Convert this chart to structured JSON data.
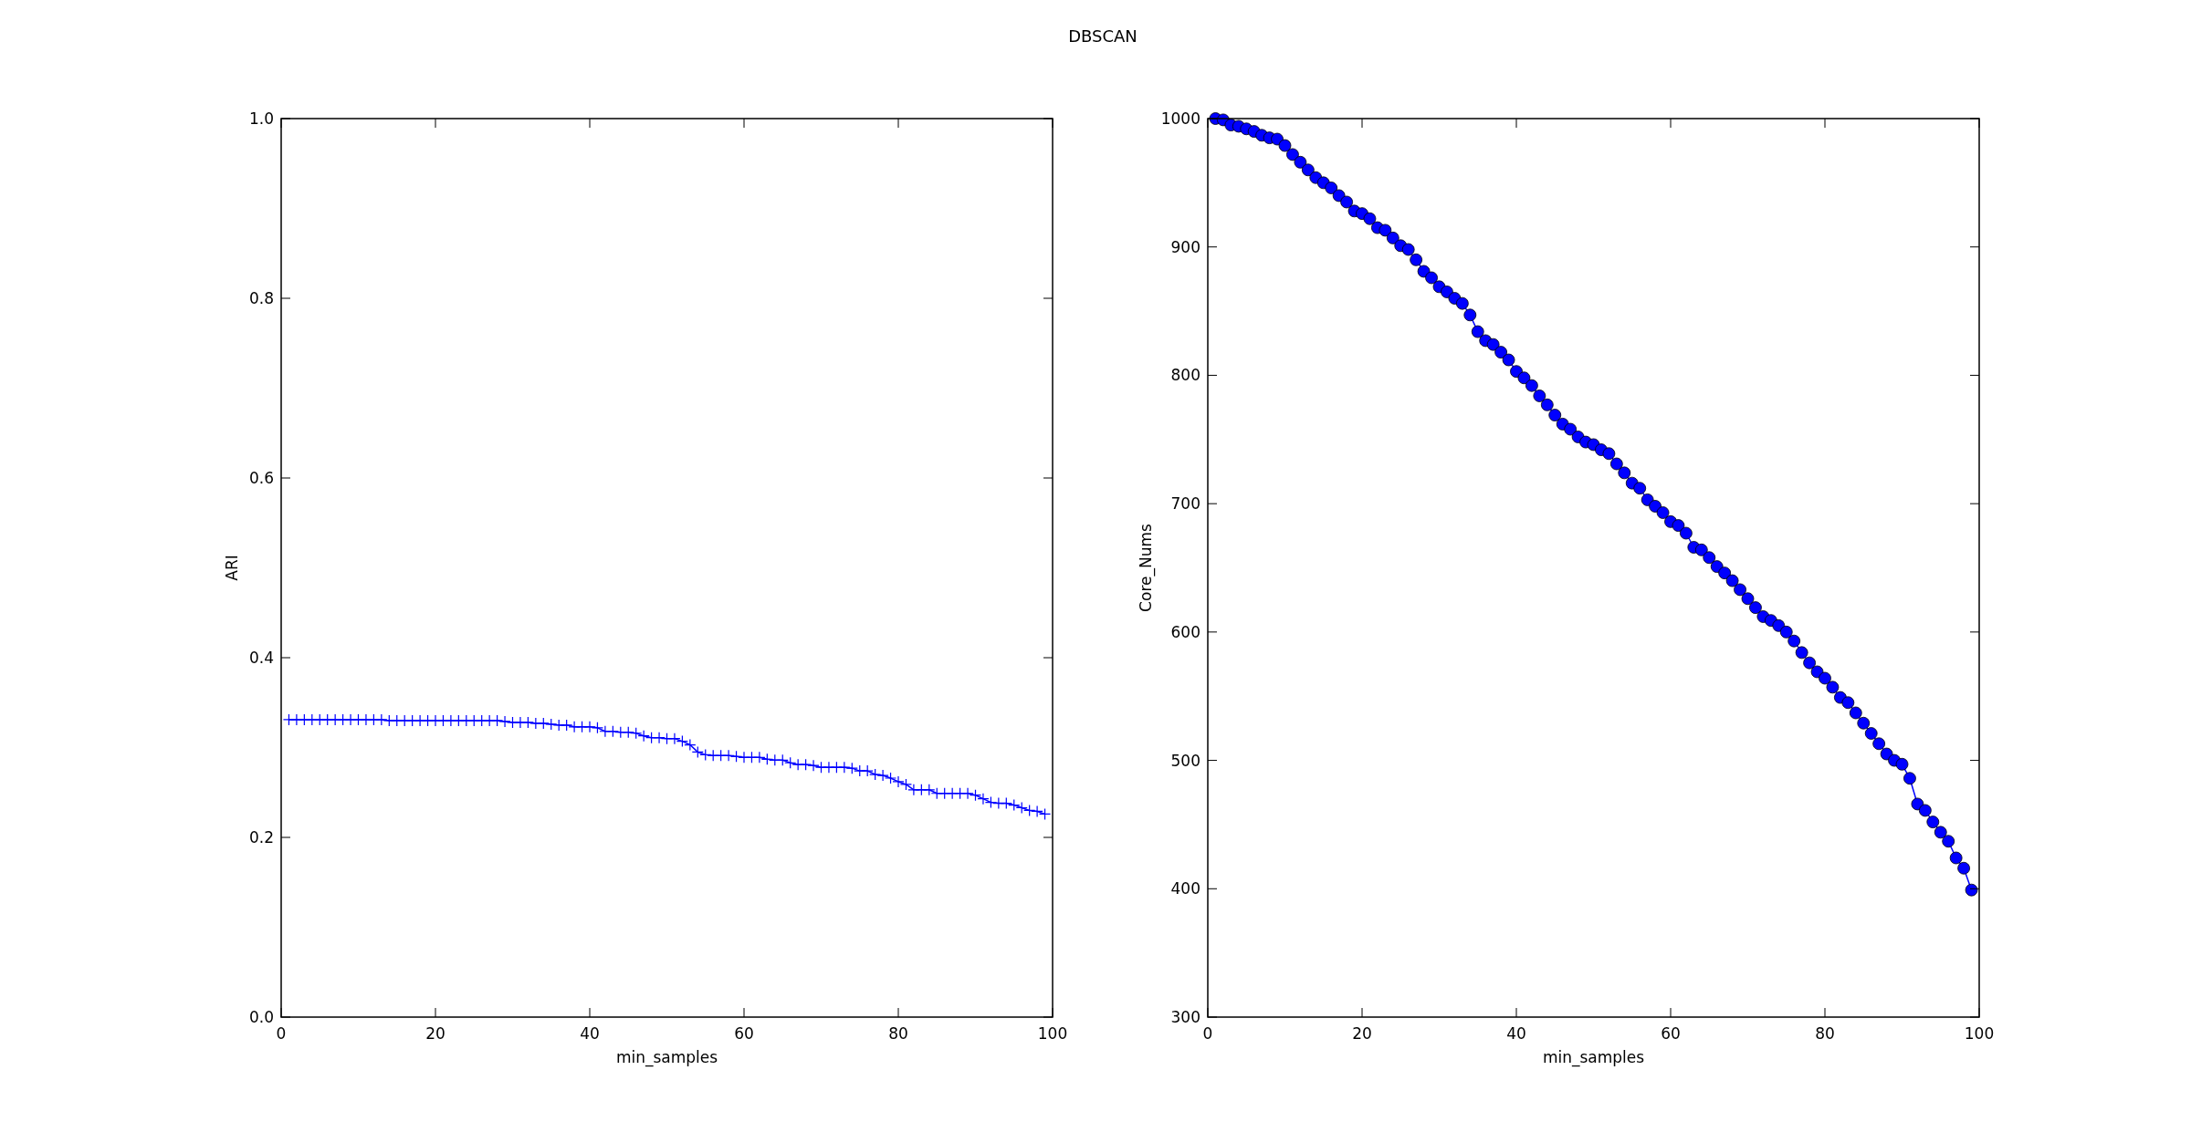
{
  "chart_data": [
    {
      "type": "line",
      "title": "DBSCAN",
      "xlabel": "min_samples",
      "ylabel": "ARI",
      "xlim": [
        0,
        100
      ],
      "xticks": [
        0,
        20,
        40,
        60,
        80,
        100
      ],
      "ylim": [
        0.0,
        1.0
      ],
      "yticks": [
        {
          "value": 0,
          "label": "0.0"
        },
        0.2,
        0.4,
        0.6,
        0.8,
        {
          "value": 1,
          "label": "1.0"
        }
      ],
      "grid": false,
      "marker": "cross",
      "line_style": "solid",
      "x": [
        1,
        2,
        3,
        4,
        5,
        6,
        7,
        8,
        9,
        10,
        11,
        12,
        13,
        14,
        15,
        16,
        17,
        18,
        19,
        20,
        21,
        22,
        23,
        24,
        25,
        26,
        27,
        28,
        29,
        30,
        31,
        32,
        33,
        34,
        35,
        36,
        37,
        38,
        39,
        40,
        41,
        42,
        43,
        44,
        45,
        46,
        47,
        48,
        49,
        50,
        51,
        52,
        53,
        54,
        55,
        56,
        57,
        58,
        59,
        60,
        61,
        62,
        63,
        64,
        65,
        66,
        67,
        68,
        69,
        70,
        71,
        72,
        73,
        74,
        75,
        76,
        77,
        78,
        79,
        80,
        81,
        82,
        83,
        84,
        85,
        86,
        87,
        88,
        89,
        90,
        91,
        92,
        93,
        94,
        95,
        96,
        97,
        98,
        99
      ],
      "series": [
        {
          "color": "#0000ff",
          "values": [
            0.331,
            0.331,
            0.331,
            0.331,
            0.331,
            0.331,
            0.331,
            0.331,
            0.331,
            0.331,
            0.331,
            0.331,
            0.331,
            0.33,
            0.33,
            0.33,
            0.33,
            0.33,
            0.33,
            0.33,
            0.33,
            0.33,
            0.33,
            0.33,
            0.33,
            0.33,
            0.33,
            0.33,
            0.329,
            0.328,
            0.328,
            0.328,
            0.327,
            0.327,
            0.326,
            0.325,
            0.325,
            0.323,
            0.323,
            0.323,
            0.322,
            0.318,
            0.318,
            0.317,
            0.317,
            0.316,
            0.313,
            0.311,
            0.311,
            0.31,
            0.31,
            0.307,
            0.303,
            0.295,
            0.292,
            0.291,
            0.291,
            0.291,
            0.29,
            0.289,
            0.289,
            0.289,
            0.287,
            0.286,
            0.286,
            0.283,
            0.281,
            0.281,
            0.28,
            0.278,
            0.278,
            0.278,
            0.278,
            0.277,
            0.274,
            0.274,
            0.27,
            0.269,
            0.266,
            0.262,
            0.259,
            0.253,
            0.253,
            0.253,
            0.249,
            0.249,
            0.249,
            0.249,
            0.249,
            0.247,
            0.243,
            0.239,
            0.238,
            0.238,
            0.236,
            0.233,
            0.23,
            0.229,
            0.226
          ]
        }
      ]
    },
    {
      "type": "line",
      "xlabel": "min_samples",
      "ylabel": "Core_Nums",
      "xlim": [
        0,
        100
      ],
      "xticks": [
        0,
        20,
        40,
        60,
        80,
        100
      ],
      "ylim": [
        300,
        1000
      ],
      "yticks": [
        300,
        400,
        500,
        600,
        700,
        800,
        900,
        1000
      ],
      "grid": false,
      "marker": "circle",
      "line_style": "solid",
      "x": [
        1,
        2,
        3,
        4,
        5,
        6,
        7,
        8,
        9,
        10,
        11,
        12,
        13,
        14,
        15,
        16,
        17,
        18,
        19,
        20,
        21,
        22,
        23,
        24,
        25,
        26,
        27,
        28,
        29,
        30,
        31,
        32,
        33,
        34,
        35,
        36,
        37,
        38,
        39,
        40,
        41,
        42,
        43,
        44,
        45,
        46,
        47,
        48,
        49,
        50,
        51,
        52,
        53,
        54,
        55,
        56,
        57,
        58,
        59,
        60,
        61,
        62,
        63,
        64,
        65,
        66,
        67,
        68,
        69,
        70,
        71,
        72,
        73,
        74,
        75,
        76,
        77,
        78,
        79,
        80,
        81,
        82,
        83,
        84,
        85,
        86,
        87,
        88,
        89,
        90,
        91,
        92,
        93,
        94,
        95,
        96,
        97,
        98,
        99
      ],
      "series": [
        {
          "color": "#0000ff",
          "values": [
            1000,
            999,
            995,
            994,
            992,
            990,
            987,
            985,
            984,
            979,
            972,
            966,
            960,
            954,
            950,
            946,
            940,
            935,
            928,
            926,
            922,
            915,
            913,
            907,
            901,
            898,
            890,
            881,
            876,
            869,
            865,
            860,
            856,
            847,
            834,
            827,
            824,
            818,
            812,
            803,
            798,
            792,
            784,
            777,
            769,
            762,
            758,
            752,
            748,
            746,
            742,
            739,
            731,
            724,
            716,
            712,
            703,
            698,
            693,
            686,
            683,
            677,
            666,
            664,
            658,
            651,
            646,
            640,
            633,
            626,
            619,
            612,
            609,
            605,
            600,
            593,
            584,
            576,
            569,
            564,
            557,
            549,
            545,
            537,
            529,
            521,
            513,
            505,
            500,
            497,
            486,
            466,
            461,
            452,
            444,
            437,
            424,
            416,
            399
          ]
        }
      ]
    }
  ]
}
